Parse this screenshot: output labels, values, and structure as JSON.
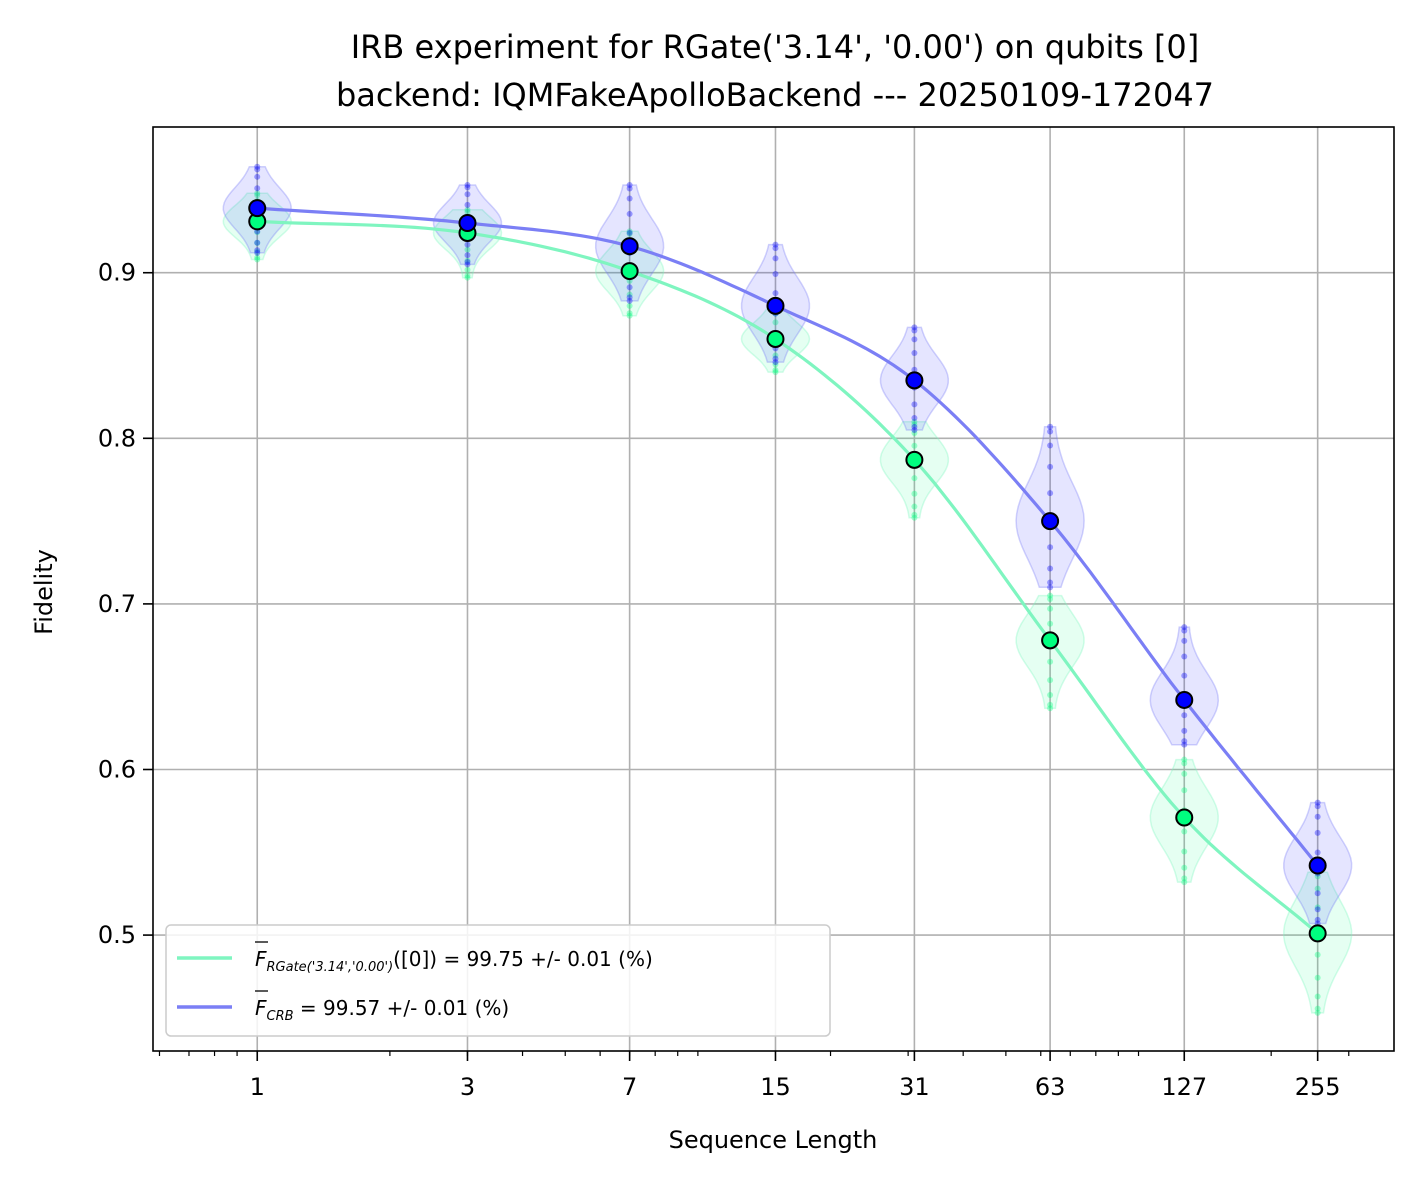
{
  "chart_data": {
    "type": "scatter",
    "title_line1": "IRB experiment for RGate('3.14', '0.00') on qubits [0]",
    "title_line2": "backend: IQMFakeApolloBackend --- 20250109-172047",
    "xlabel": "Sequence Length",
    "ylabel": "Fidelity",
    "x_scale": "log",
    "xlim": [
      0.58,
      380
    ],
    "ylim": [
      0.43,
      0.988
    ],
    "x_ticks": [
      1,
      3,
      7,
      15,
      31,
      63,
      127,
      255
    ],
    "x_tick_labels": [
      "1",
      "3",
      "7",
      "15",
      "31",
      "63",
      "127",
      "255"
    ],
    "y_ticks": [
      0.5,
      0.6,
      0.7,
      0.8,
      0.9
    ],
    "y_tick_labels": [
      "0.5",
      "0.6",
      "0.7",
      "0.8",
      "0.9"
    ],
    "grid": true,
    "legend_position": "lower-left",
    "x": [
      1,
      3,
      7,
      15,
      31,
      63,
      127,
      255
    ],
    "series": [
      {
        "key": "irb",
        "color": "#00ff7f",
        "line_color": "#7ff5c0",
        "values": [
          0.931,
          0.924,
          0.901,
          0.86,
          0.787,
          0.678,
          0.571,
          0.501
        ],
        "ranges": [
          [
            0.908,
            0.948
          ],
          [
            0.897,
            0.938
          ],
          [
            0.874,
            0.925
          ],
          [
            0.84,
            0.88
          ],
          [
            0.752,
            0.81
          ],
          [
            0.637,
            0.705
          ],
          [
            0.532,
            0.606
          ],
          [
            0.453,
            0.538
          ]
        ],
        "legend_text_main": "F",
        "legend_text_sub": "RGate('3.14','0.00')",
        "legend_text_value": "([0]) = 99.75 +/- 0.01 (%)"
      },
      {
        "key": "crb",
        "color": "#0000ff",
        "line_color": "#7b7ff5",
        "values": [
          0.939,
          0.93,
          0.916,
          0.88,
          0.835,
          0.75,
          0.642,
          0.542
        ],
        "ranges": [
          [
            0.912,
            0.964
          ],
          [
            0.905,
            0.953
          ],
          [
            0.883,
            0.953
          ],
          [
            0.846,
            0.917
          ],
          [
            0.805,
            0.867
          ],
          [
            0.71,
            0.807
          ],
          [
            0.615,
            0.686
          ],
          [
            0.507,
            0.58
          ]
        ],
        "legend_text_main": "F",
        "legend_text_sub": "CRB",
        "legend_text_value": " = 99.57 +/- 0.01 (%)"
      }
    ]
  }
}
